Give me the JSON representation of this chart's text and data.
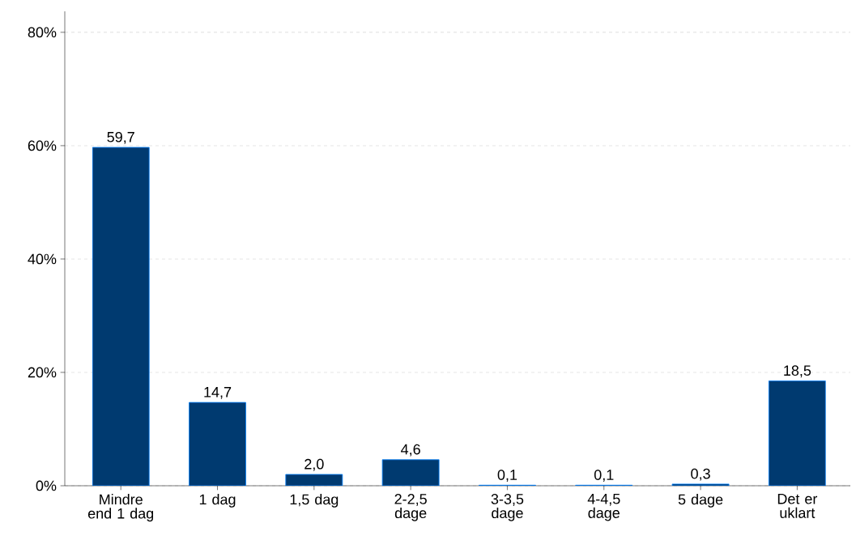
{
  "chart_data": {
    "type": "bar",
    "categories": [
      "Mindre end 1 dag",
      "1 dag",
      "1,5 dag",
      "2-2,5 dage",
      "3-3,5 dage",
      "4-4,5 dage",
      "5 dage",
      "Det er uklart"
    ],
    "values": [
      59.7,
      14.7,
      2.0,
      4.6,
      0.1,
      0.1,
      0.3,
      18.5
    ],
    "value_labels": [
      "59,7",
      "14,7",
      "2,0",
      "4,6",
      "0,1",
      "0,1",
      "0,3",
      "18,5"
    ],
    "color": "#003a70",
    "ylim": [
      0,
      83.7
    ],
    "yticks": [
      {
        "value": 0,
        "label": "0%"
      },
      {
        "value": 20,
        "label": "20%"
      },
      {
        "value": 40,
        "label": "40%"
      },
      {
        "value": 60,
        "label": "60%"
      },
      {
        "value": 80,
        "label": "80%"
      }
    ],
    "grid": "y"
  }
}
